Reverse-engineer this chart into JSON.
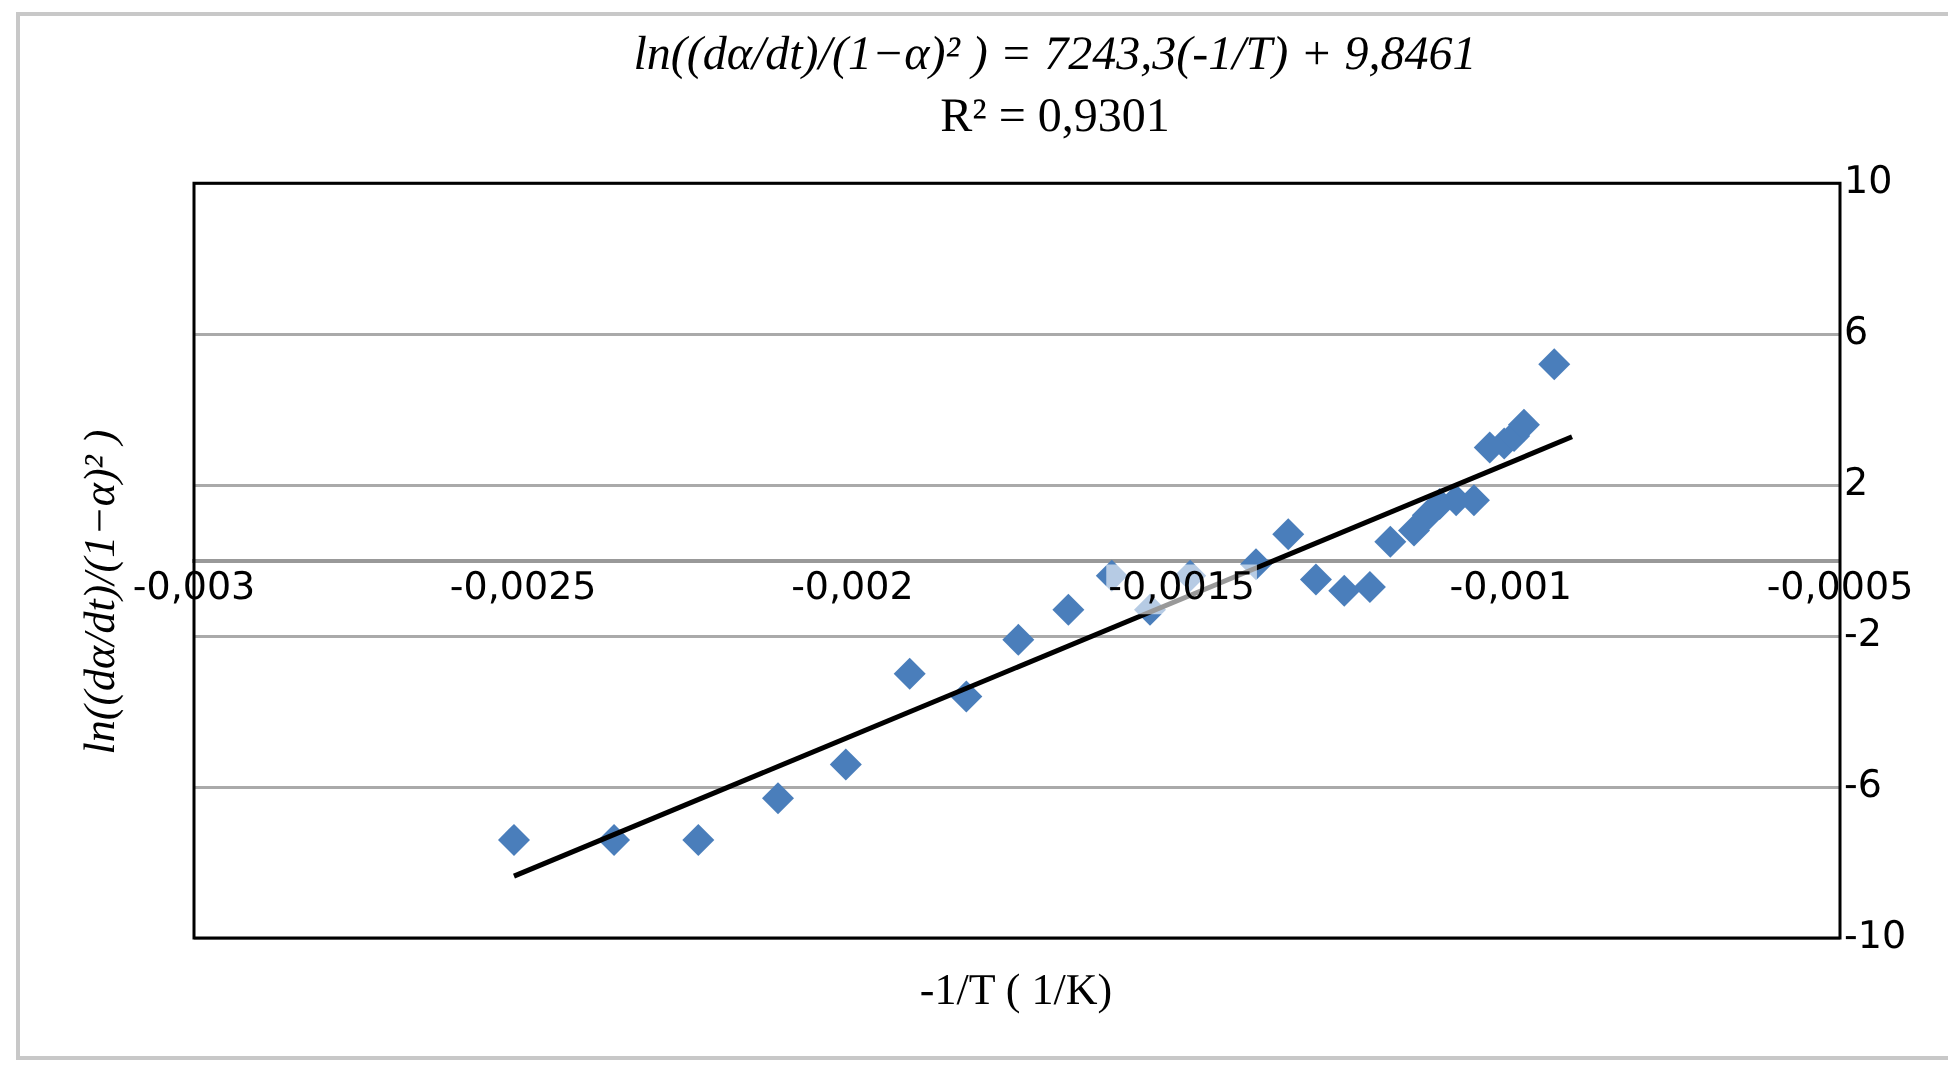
{
  "chart_data": {
    "type": "scatter",
    "title": "ln((dα/dt)/(1−α)² ) = 7243,3(-1/T) + 9,8461",
    "subtitle": "R² = 0,9301",
    "xlabel": "-1/T ( 1/K)",
    "ylabel": "ln((dα/dt)/(1−α)² )",
    "series": [
      {
        "color": "#4a7ebb",
        "marker": "diamond",
        "x": [
          -0.002514,
          -0.002362,
          -0.002234,
          -0.002113,
          -0.00201,
          -0.001913,
          -0.001827,
          -0.001748,
          -0.001672,
          -0.001606,
          -0.001548,
          -0.001487,
          -0.001387,
          -0.001338,
          -0.001296,
          -0.001253,
          -0.001214,
          -0.001183,
          -0.001147,
          -0.001126,
          -0.001108,
          -0.001083,
          -0.001056,
          -0.001032,
          -0.00101,
          -0.000995,
          -0.00098,
          -0.000934
        ],
        "values": [
          -7.4,
          -7.4,
          -7.4,
          -6.3,
          -5.4,
          -3.0,
          -3.6,
          -2.1,
          -1.3,
          -0.4,
          -1.3,
          -0.4,
          -0.1,
          0.7,
          -0.5,
          -0.8,
          -0.7,
          0.5,
          0.8,
          1.2,
          1.5,
          1.6,
          1.6,
          3.0,
          3.1,
          3.3,
          3.6,
          5.2
        ]
      },
      {
        "type": "line",
        "color": "#000000",
        "marker": "none",
        "x": [
          -0.002514,
          -0.000907
        ],
        "values": [
          -8.36,
          3.28
        ]
      }
    ],
    "xlim": [
      -0.003,
      -0.0005
    ],
    "xticks": [
      {
        "value": -0.003,
        "label": "-0,003"
      },
      {
        "value": -0.0025,
        "label": "-0,0025"
      },
      {
        "value": -0.002,
        "label": "-0,002"
      },
      {
        "value": -0.0015,
        "label": "-0,0015"
      },
      {
        "value": -0.001,
        "label": "-0,001"
      },
      {
        "value": -0.0005,
        "label": "-0,0005"
      }
    ],
    "ylim": [
      -10,
      10
    ],
    "yticks": [
      -10,
      -6,
      -2,
      2,
      6,
      10
    ],
    "grid": "y"
  }
}
